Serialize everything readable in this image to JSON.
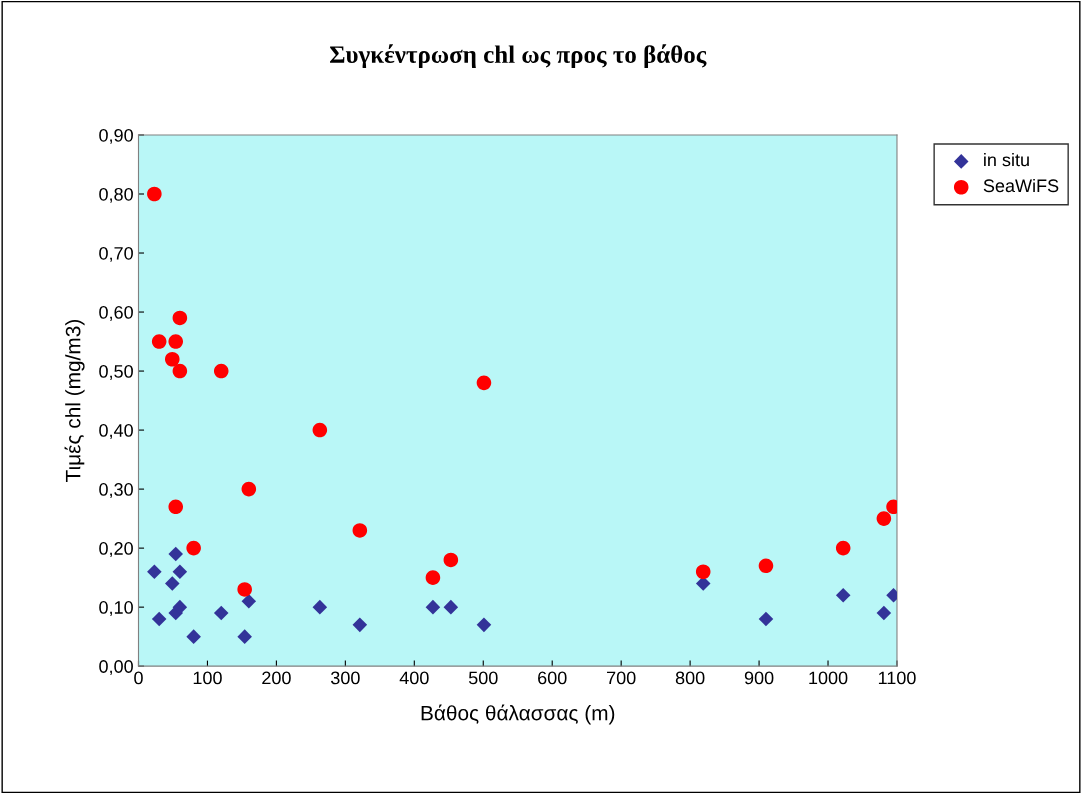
{
  "chart_data": {
    "type": "scatter",
    "title": "Συγκέντρωση chl ως προς το βάθος",
    "xlabel": "Βάθος θάλασσας (m)",
    "ylabel": "Τιμές chl (mg/m3)",
    "xlim": [
      0,
      1100
    ],
    "xticks": [
      0,
      100,
      200,
      300,
      400,
      500,
      600,
      700,
      800,
      900,
      1000,
      1100
    ],
    "ylim": [
      0,
      0.9
    ],
    "yticks": [
      {
        "value": 0,
        "label": "0,00"
      },
      {
        "value": 0.1,
        "label": "0,10"
      },
      {
        "value": 0.2,
        "label": "0,20"
      },
      {
        "value": 0.3,
        "label": "0,30"
      },
      {
        "value": 0.4,
        "label": "0,40"
      },
      {
        "value": 0.5,
        "label": "0,50"
      },
      {
        "value": 0.6,
        "label": "0,60"
      },
      {
        "value": 0.7,
        "label": "0,70"
      },
      {
        "value": 0.8,
        "label": "0,80"
      },
      {
        "value": 0.9,
        "label": "0,90"
      }
    ],
    "grid": false,
    "legend": "top right",
    "series": [
      {
        "name": "in situ",
        "color": "#333399",
        "marker": "diamond",
        "x": [
          23,
          30,
          49,
          54,
          54,
          60,
          60,
          80,
          120,
          154,
          160,
          263,
          321,
          427,
          453,
          501,
          819,
          910,
          1022,
          1081,
          1095
        ],
        "values": [
          0.16,
          0.08,
          0.14,
          0.19,
          0.09,
          0.16,
          0.1,
          0.05,
          0.09,
          0.05,
          0.11,
          0.1,
          0.07,
          0.1,
          0.1,
          0.07,
          0.14,
          0.08,
          0.12,
          0.09,
          0.12
        ]
      },
      {
        "name": "SeaWiFS",
        "color": "#ff0000",
        "marker": "circle",
        "x": [
          23,
          30,
          49,
          54,
          60,
          60,
          54,
          80,
          120,
          154,
          160,
          263,
          321,
          427,
          453,
          501,
          819,
          910,
          1022,
          1081,
          1095
        ],
        "values": [
          0.8,
          0.55,
          0.52,
          0.55,
          0.59,
          0.5,
          0.27,
          0.2,
          0.5,
          0.13,
          0.3,
          0.4,
          0.23,
          0.15,
          0.18,
          0.48,
          0.16,
          0.17,
          0.2,
          0.25,
          0.27
        ]
      }
    ]
  }
}
